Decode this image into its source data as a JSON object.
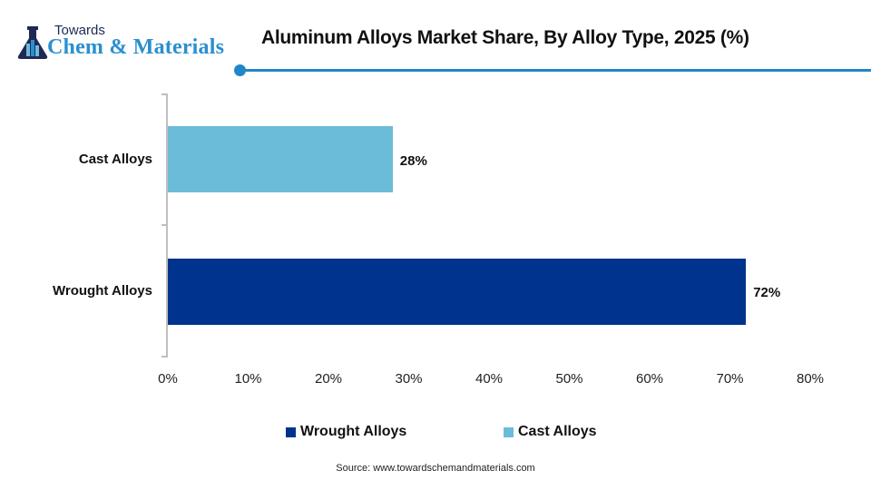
{
  "logo": {
    "line1": "Towards",
    "line2": "Chem & Materials"
  },
  "title": "Aluminum Alloys Market Share, By Alloy Type, 2025 (%)",
  "colors": {
    "wrought": "#00338d",
    "cast": "#6bbcd9",
    "accent": "#1f86c8",
    "axis": "#bfbfbf"
  },
  "categories": [
    {
      "label": "Cast Alloys",
      "value": 28,
      "value_label": "28%"
    },
    {
      "label": "Wrought Alloys",
      "value": 72,
      "value_label": "72%"
    }
  ],
  "x_ticks": [
    "0%",
    "10%",
    "20%",
    "30%",
    "40%",
    "50%",
    "60%",
    "70%",
    "80%"
  ],
  "legend": [
    {
      "label": "Wrought Alloys"
    },
    {
      "label": "Cast Alloys"
    }
  ],
  "source": "Source: www.towardschemandmaterials.com",
  "chart_data": {
    "type": "bar",
    "orientation": "horizontal",
    "title": "Aluminum Alloys Market Share, By Alloy Type, 2025 (%)",
    "categories": [
      "Cast Alloys",
      "Wrought Alloys"
    ],
    "values": [
      28,
      72
    ],
    "data_labels": [
      "28%",
      "72%"
    ],
    "xlabel": "",
    "ylabel": "",
    "xlim": [
      0,
      80
    ],
    "x_tick_labels": [
      "0%",
      "10%",
      "20%",
      "30%",
      "40%",
      "50%",
      "60%",
      "70%",
      "80%"
    ],
    "grid": false,
    "legend": [
      "Wrought Alloys",
      "Cast Alloys"
    ],
    "legend_position": "bottom",
    "source": "Source: www.towardschemandmaterials.com"
  }
}
